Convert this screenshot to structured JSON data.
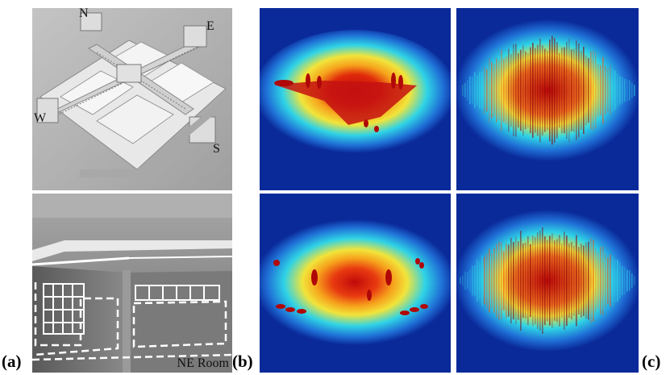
{
  "labels": {
    "a": "(a)",
    "b": "(b)",
    "c": "(c)"
  },
  "model_view": {
    "compass": {
      "north": "N",
      "east": "E",
      "south": "S",
      "west": "W"
    }
  },
  "room_view": {
    "caption": "NE Room"
  },
  "colors": {
    "background": "#ffffff",
    "heatmap_low": "#0a2a9a",
    "heatmap_mid": "#2fd3e6",
    "heatmap_warm": "#f2e43a",
    "heatmap_high": "#c00a0a"
  }
}
